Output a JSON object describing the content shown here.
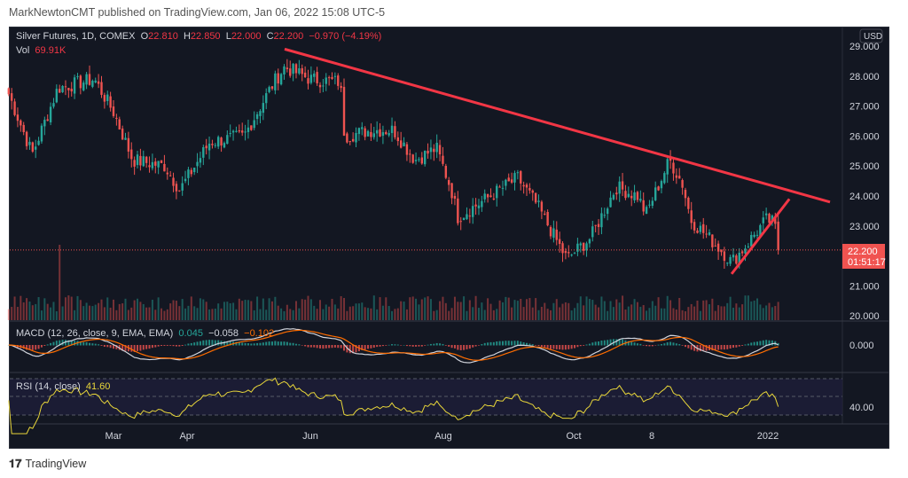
{
  "publisher_line": "MarkNewtonCMT published on TradingView.com, Jan 06, 2022 15:08 UTC-5",
  "symbol": {
    "title": "Silver Futures, 1D, COMEX",
    "o_label": "O",
    "o": "22.810",
    "h_label": "H",
    "h": "22.850",
    "l_label": "L",
    "l": "22.000",
    "c_label": "C",
    "c": "22.200",
    "change": "−0.970 (−4.19%)"
  },
  "volume": {
    "label": "Vol",
    "value": "69.91K"
  },
  "currency": "USD",
  "price_axis": [
    "29.000",
    "28.000",
    "27.000",
    "26.000",
    "25.000",
    "24.000",
    "23.000",
    "21.000",
    "20.000"
  ],
  "last_price": {
    "value": "22.200",
    "countdown": "01:51:17"
  },
  "macd": {
    "label": "MACD (12, 26, close, 9, EMA, EMA)",
    "hist": "0.045",
    "macd": "−0.058",
    "signal": "−0.102",
    "axis": "0.000"
  },
  "rsi": {
    "label": "RSI (14, close)",
    "value": "41.60",
    "axis": "40.00"
  },
  "time_axis": [
    "Mar",
    "Apr",
    "Jun",
    "Aug",
    "Oct",
    "8",
    "2022"
  ],
  "footer": {
    "brand": "TradingView"
  },
  "colors": {
    "up": "#26a69a",
    "down": "#ef5350",
    "trendline": "#f23645",
    "macd": "#d1d4dc",
    "signal": "#ff6d00",
    "rsi": "#e8d63a",
    "background": "#131722"
  },
  "chart_data": {
    "type": "candlestick",
    "series_name": "Silver Futures",
    "y_range": [
      20,
      29.3
    ],
    "key_closes": [
      [
        "2021-01-11",
        27.4
      ],
      [
        "2021-01-22",
        25.4
      ],
      [
        "2021-02-03",
        27.6
      ],
      [
        "2021-02-20",
        27.9
      ],
      [
        "2021-03-01",
        26.8
      ],
      [
        "2021-03-10",
        25.2
      ],
      [
        "2021-03-25",
        25.0
      ],
      [
        "2021-04-01",
        24.2
      ],
      [
        "2021-04-15",
        25.8
      ],
      [
        "2021-05-01",
        26.0
      ],
      [
        "2021-05-15",
        27.8
      ],
      [
        "2021-05-20",
        28.3
      ],
      [
        "2021-06-01",
        27.9
      ],
      [
        "2021-06-15",
        27.8
      ],
      [
        "2021-06-17",
        26.0
      ],
      [
        "2021-06-30",
        26.2
      ],
      [
        "2021-07-10",
        26.2
      ],
      [
        "2021-07-20",
        25.2
      ],
      [
        "2021-07-30",
        25.6
      ],
      [
        "2021-08-06",
        24.2
      ],
      [
        "2021-08-09",
        23.3
      ],
      [
        "2021-08-20",
        23.8
      ],
      [
        "2021-09-06",
        24.6
      ],
      [
        "2021-09-15",
        23.7
      ],
      [
        "2021-09-25",
        22.4
      ],
      [
        "2021-09-29",
        21.9
      ],
      [
        "2021-10-10",
        22.6
      ],
      [
        "2021-10-22",
        24.3
      ],
      [
        "2021-11-01",
        24.0
      ],
      [
        "2021-11-05",
        23.4
      ],
      [
        "2021-11-16",
        25.2
      ],
      [
        "2021-11-22",
        24.4
      ],
      [
        "2021-11-26",
        23.2
      ],
      [
        "2021-12-10",
        22.2
      ],
      [
        "2021-12-15",
        21.8
      ],
      [
        "2021-12-20",
        22.2
      ],
      [
        "2021-12-31",
        23.2
      ],
      [
        "2022-01-04",
        23.1
      ],
      [
        "2022-01-06",
        22.2
      ]
    ],
    "trendlines": [
      {
        "from": [
          "2021-05-20",
          28.9
        ],
        "to": [
          "2022-01-30",
          23.8
        ]
      },
      {
        "from": [
          "2021-12-15",
          21.4
        ],
        "to": [
          "2022-01-11",
          23.9
        ]
      }
    ]
  }
}
